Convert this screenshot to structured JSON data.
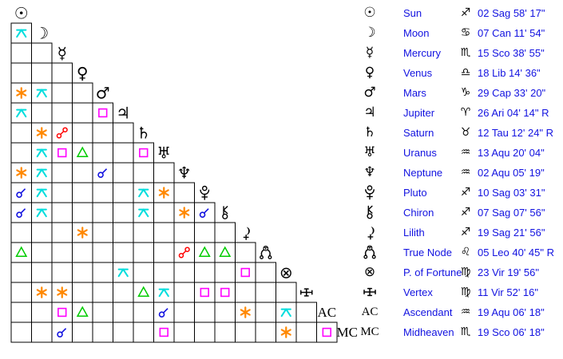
{
  "colors": {
    "background": "#FFFFFF",
    "grid_line": "#000000",
    "glyph": "#000000",
    "table_text": "#1212E0",
    "aspects": {
      "conjunction": "#1212E0",
      "opposition": "#FF0000",
      "trine": "#00CC00",
      "square": "#FF00FF",
      "sextile": "#FF8800",
      "quincunx": "#00DDDD"
    }
  },
  "points": [
    {
      "id": "sun",
      "icon": "sun-icon",
      "name": "Sun",
      "sign_icon": "sagittarius-icon",
      "position": "02 Sag 58' 17\""
    },
    {
      "id": "moon",
      "icon": "moon-icon",
      "name": "Moon",
      "sign_icon": "cancer-icon",
      "position": "07 Can 11' 54\""
    },
    {
      "id": "mercury",
      "icon": "mercury-icon",
      "name": "Mercury",
      "sign_icon": "scorpio-icon",
      "position": "15 Sco 38' 55\""
    },
    {
      "id": "venus",
      "icon": "venus-icon",
      "name": "Venus",
      "sign_icon": "libra-icon",
      "position": "18 Lib 14' 36\""
    },
    {
      "id": "mars",
      "icon": "mars-icon",
      "name": "Mars",
      "sign_icon": "capricorn-icon",
      "position": "29 Cap 33' 20\""
    },
    {
      "id": "jupiter",
      "icon": "jupiter-icon",
      "name": "Jupiter",
      "sign_icon": "aries-icon",
      "position": "26 Ari 04' 14\" R"
    },
    {
      "id": "saturn",
      "icon": "saturn-icon",
      "name": "Saturn",
      "sign_icon": "taurus-icon",
      "position": "12 Tau 12' 24\" R"
    },
    {
      "id": "uranus",
      "icon": "uranus-icon",
      "name": "Uranus",
      "sign_icon": "aquarius-icon",
      "position": "13 Aqu 20' 04\""
    },
    {
      "id": "neptune",
      "icon": "neptune-icon",
      "name": "Neptune",
      "sign_icon": "aquarius-icon",
      "position": "02 Aqu 05' 19\""
    },
    {
      "id": "pluto",
      "icon": "pluto-icon",
      "name": "Pluto",
      "sign_icon": "sagittarius-icon",
      "position": "10 Sag 03' 31\""
    },
    {
      "id": "chiron",
      "icon": "chiron-icon",
      "name": "Chiron",
      "sign_icon": "sagittarius-icon",
      "position": "07 Sag 07' 56\""
    },
    {
      "id": "lilith",
      "icon": "lilith-icon",
      "name": "Lilith",
      "sign_icon": "sagittarius-icon",
      "position": "19 Sag 21' 56\""
    },
    {
      "id": "truenode",
      "icon": "true-node-icon",
      "name": "True Node",
      "sign_icon": "leo-icon",
      "position": "05 Leo 40' 45\" R"
    },
    {
      "id": "fortune",
      "icon": "part-of-fortune-icon",
      "name": "P. of Fortune",
      "sign_icon": "virgo-icon",
      "position": "23 Vir 19' 56\""
    },
    {
      "id": "vertex",
      "icon": "vertex-icon",
      "name": "Vertex",
      "sign_icon": "virgo-icon",
      "position": "11 Vir 52' 16\""
    },
    {
      "id": "ac",
      "icon": "ascendant-icon",
      "short_label": "AC",
      "name": "Ascendant",
      "sign_icon": "aquarius-icon",
      "position": "19 Aqu 06' 18\""
    },
    {
      "id": "mc",
      "icon": "midheaven-icon",
      "short_label": "MC",
      "name": "Midheaven",
      "sign_icon": "scorpio-icon",
      "position": "19 Sco 06' 18\""
    }
  ],
  "aspects": [
    [
      "moon",
      "sun",
      "quincunx"
    ],
    [
      "mars",
      "sun",
      "sextile"
    ],
    [
      "mars",
      "moon",
      "quincunx"
    ],
    [
      "jupiter",
      "sun",
      "quincunx"
    ],
    [
      "jupiter",
      "mars",
      "square"
    ],
    [
      "saturn",
      "moon",
      "sextile"
    ],
    [
      "saturn",
      "mercury",
      "opposition"
    ],
    [
      "uranus",
      "moon",
      "quincunx"
    ],
    [
      "uranus",
      "mercury",
      "square"
    ],
    [
      "uranus",
      "venus",
      "trine"
    ],
    [
      "uranus",
      "saturn",
      "square"
    ],
    [
      "neptune",
      "sun",
      "sextile"
    ],
    [
      "neptune",
      "moon",
      "quincunx"
    ],
    [
      "neptune",
      "mars",
      "conjunction"
    ],
    [
      "pluto",
      "sun",
      "conjunction"
    ],
    [
      "pluto",
      "moon",
      "quincunx"
    ],
    [
      "pluto",
      "saturn",
      "quincunx"
    ],
    [
      "pluto",
      "uranus",
      "sextile"
    ],
    [
      "chiron",
      "sun",
      "conjunction"
    ],
    [
      "chiron",
      "moon",
      "quincunx"
    ],
    [
      "chiron",
      "saturn",
      "quincunx"
    ],
    [
      "chiron",
      "neptune",
      "sextile"
    ],
    [
      "chiron",
      "pluto",
      "conjunction"
    ],
    [
      "lilith",
      "venus",
      "sextile"
    ],
    [
      "truenode",
      "sun",
      "trine"
    ],
    [
      "truenode",
      "neptune",
      "opposition"
    ],
    [
      "truenode",
      "pluto",
      "trine"
    ],
    [
      "truenode",
      "chiron",
      "trine"
    ],
    [
      "fortune",
      "jupiter",
      "quincunx"
    ],
    [
      "fortune",
      "lilith",
      "square"
    ],
    [
      "vertex",
      "moon",
      "sextile"
    ],
    [
      "vertex",
      "mercury",
      "sextile"
    ],
    [
      "vertex",
      "saturn",
      "trine"
    ],
    [
      "vertex",
      "uranus",
      "quincunx"
    ],
    [
      "vertex",
      "pluto",
      "square"
    ],
    [
      "vertex",
      "chiron",
      "square"
    ],
    [
      "ac",
      "mercury",
      "square"
    ],
    [
      "ac",
      "venus",
      "trine"
    ],
    [
      "ac",
      "uranus",
      "conjunction"
    ],
    [
      "ac",
      "lilith",
      "sextile"
    ],
    [
      "ac",
      "fortune",
      "quincunx"
    ],
    [
      "mc",
      "mercury",
      "conjunction"
    ],
    [
      "mc",
      "uranus",
      "square"
    ],
    [
      "mc",
      "fortune",
      "sextile"
    ],
    [
      "mc",
      "ac",
      "square"
    ]
  ]
}
